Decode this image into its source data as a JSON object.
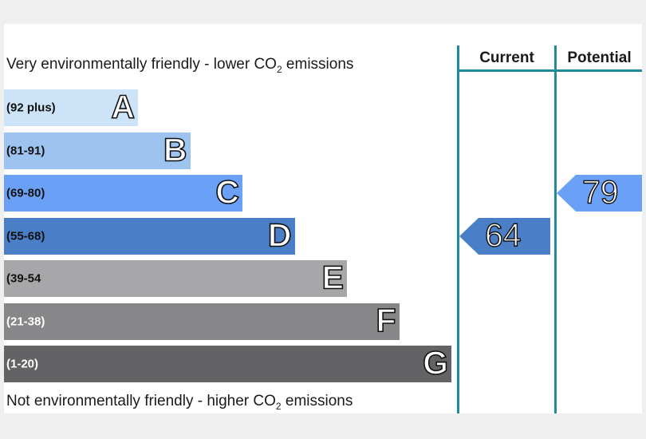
{
  "chart_data": {
    "type": "bar",
    "top_caption": "Very environmentally friendly - lower CO",
    "top_caption_sub": "2",
    "top_caption_end": " emissions",
    "bottom_caption": "Not environmentally friendly - higher CO",
    "bottom_caption_sub": "2",
    "bottom_caption_end": " emissions",
    "columns": [
      "Current",
      "Potential"
    ],
    "bands": [
      {
        "range": "(92 plus)",
        "letter": "A",
        "color": "#cde3f7"
      },
      {
        "range": "(81-91)",
        "letter": "B",
        "color": "#9dc4f0"
      },
      {
        "range": "(69-80)",
        "letter": "C",
        "color": "#6aa0f5"
      },
      {
        "range": "(55-68)",
        "letter": "D",
        "color": "#4a7ec7"
      },
      {
        "range": "(39-54",
        "letter": "E",
        "color": "#a7a7a9"
      },
      {
        "range": "(21-38)",
        "letter": "F",
        "color": "#878688"
      },
      {
        "range": "(1-20)",
        "letter": "G",
        "color": "#636264"
      }
    ],
    "current": {
      "value": 64,
      "band": "D",
      "color": "#4a7ec7"
    },
    "potential": {
      "value": 79,
      "band": "C",
      "color": "#6aa0f5"
    },
    "line_color": "#1f8a9a"
  }
}
